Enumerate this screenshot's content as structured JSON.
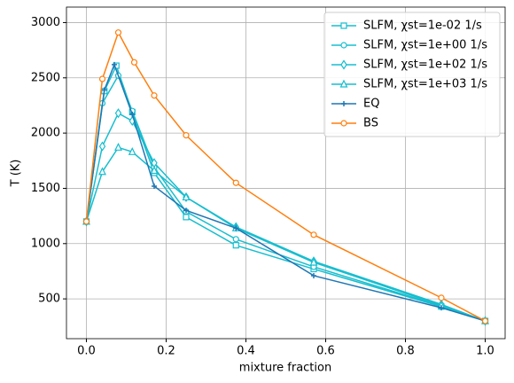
{
  "chart_data": {
    "type": "line",
    "x_label": "mixture fraction",
    "y_label": "T (K)",
    "xlim": [
      -0.05,
      1.05
    ],
    "ylim": [
      140,
      3140
    ],
    "xticks": [
      {
        "value": 0,
        "label": "0.0"
      },
      0.2,
      0.4,
      0.6,
      0.8,
      {
        "value": 1,
        "label": "1.0"
      }
    ],
    "yticks": [
      500,
      1000,
      1500,
      2000,
      2500,
      3000
    ],
    "grid": true,
    "legend": "upper right",
    "series": [
      {
        "name": "SLFM, χst=1e-02 1/s",
        "color": "#17becf",
        "marker": "square",
        "x": [
          0,
          0.045,
          0.075,
          0.115,
          0.17,
          0.25,
          0.375,
          0.57,
          0.89,
          1.0
        ],
        "values": [
          1200,
          2380,
          2610,
          2190,
          1640,
          1240,
          985,
          770,
          430,
          300
        ]
      },
      {
        "name": "SLFM, χst=1e+00 1/s",
        "color": "#17becf",
        "marker": "circle",
        "x": [
          0,
          0.04,
          0.08,
          0.115,
          0.17,
          0.25,
          0.375,
          0.57,
          0.89,
          1.0
        ],
        "values": [
          1200,
          2270,
          2520,
          2200,
          1690,
          1290,
          1040,
          790,
          435,
          300
        ]
      },
      {
        "name": "SLFM, χst=1e+02 1/s",
        "color": "#17becf",
        "marker": "diamond",
        "x": [
          0,
          0.04,
          0.08,
          0.115,
          0.17,
          0.25,
          0.375,
          0.57,
          0.89,
          1.0
        ],
        "values": [
          1200,
          1880,
          2180,
          2110,
          1730,
          1420,
          1150,
          840,
          450,
          300
        ]
      },
      {
        "name": "SLFM, χst=1e+03 1/s",
        "color": "#17becf",
        "marker": "triangle",
        "x": [
          0,
          0.04,
          0.08,
          0.115,
          0.17,
          0.25,
          0.375,
          0.57,
          0.89,
          1.0
        ],
        "values": [
          1200,
          1650,
          1870,
          1830,
          1660,
          1420,
          1140,
          830,
          440,
          300
        ]
      },
      {
        "name": "EQ",
        "color": "#1f77b4",
        "marker": "plus",
        "x": [
          0,
          0.045,
          0.07,
          0.115,
          0.17,
          0.25,
          0.375,
          0.57,
          0.89,
          1.0
        ],
        "values": [
          1200,
          2390,
          2620,
          2170,
          1520,
          1300,
          1140,
          710,
          420,
          300
        ]
      },
      {
        "name": "BS",
        "color": "#ff7f0e",
        "marker": "circle",
        "x": [
          0,
          0.04,
          0.08,
          0.12,
          0.17,
          0.25,
          0.375,
          0.57,
          0.89,
          1.0
        ],
        "values": [
          1200,
          2490,
          2910,
          2640,
          2340,
          1980,
          1550,
          1080,
          510,
          300
        ]
      }
    ]
  }
}
